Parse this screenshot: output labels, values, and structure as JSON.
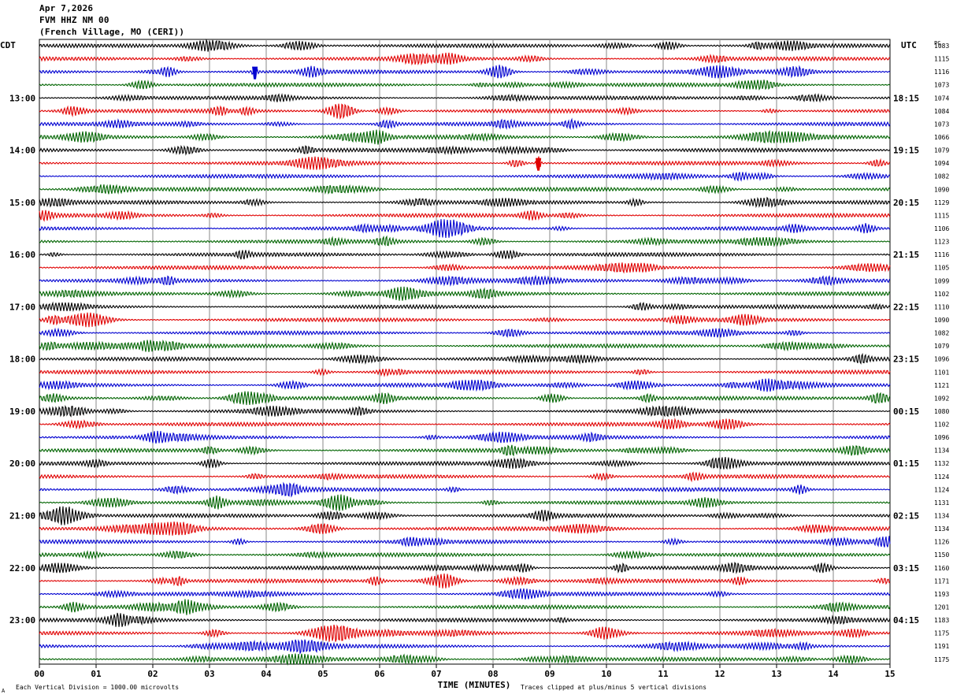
{
  "header": {
    "date": "Apr 7,2026",
    "station": "FVM HHZ NM 00",
    "location": "(French Village, MO (CERI))"
  },
  "axes": {
    "left_label": "CDT",
    "right_label": "UTC",
    "pc_label": "PC",
    "xlabel": "TIME (MINUTES)",
    "xticks": [
      "00",
      "01",
      "02",
      "03",
      "04",
      "05",
      "06",
      "07",
      "08",
      "09",
      "10",
      "11",
      "12",
      "13",
      "14",
      "15"
    ]
  },
  "footer": {
    "left": "Each Vertical Division = 1000.00 microvolts",
    "right": "Traces clipped at plus/minus 5 vertical divisions",
    "corner_mark": "A"
  },
  "colors": {
    "black": "#000000",
    "red": "#e00000",
    "blue": "#0000d0",
    "green": "#006400",
    "grid": "#888888"
  },
  "chart_data": {
    "type": "line",
    "title": "FVM HHZ NM 00",
    "xlabel": "TIME (MINUTES)",
    "xlim": [
      0,
      15
    ],
    "trace_color_cycle": [
      "black",
      "red",
      "blue",
      "green"
    ],
    "left_hour_labels": [
      "13:00",
      "14:00",
      "15:00",
      "16:00",
      "17:00",
      "18:00",
      "19:00",
      "20:00",
      "21:00",
      "22:00",
      "23:00"
    ],
    "right_hour_labels": [
      "18:15",
      "19:15",
      "20:15",
      "21:15",
      "22:15",
      "23:15",
      "00:15",
      "01:15",
      "02:15",
      "03:15",
      "04:15"
    ],
    "trace_pc_values": [
      "1083",
      "1115",
      "1116",
      "1073",
      "1074",
      "1084",
      "1073",
      "1066",
      "1079",
      "1094",
      "1082",
      "1090",
      "1129",
      "1115",
      "1106",
      "1123",
      "1116",
      "1105",
      "1099",
      "1102",
      "1110",
      "1090",
      "1082",
      "1079",
      "1096",
      "1101",
      "1121",
      "1092",
      "1080",
      "1102",
      "1096",
      "1134",
      "1132",
      "1124",
      "1124",
      "1131",
      "1134",
      "1134",
      "1126",
      "1150",
      "1160",
      "1171",
      "1193",
      "1201",
      "1183",
      "1175",
      "1191",
      "1175"
    ],
    "events": [
      {
        "trace": 2,
        "minute": 3.8,
        "description": "spike"
      },
      {
        "trace": 9,
        "minute": 8.8,
        "description": "spike"
      }
    ]
  }
}
